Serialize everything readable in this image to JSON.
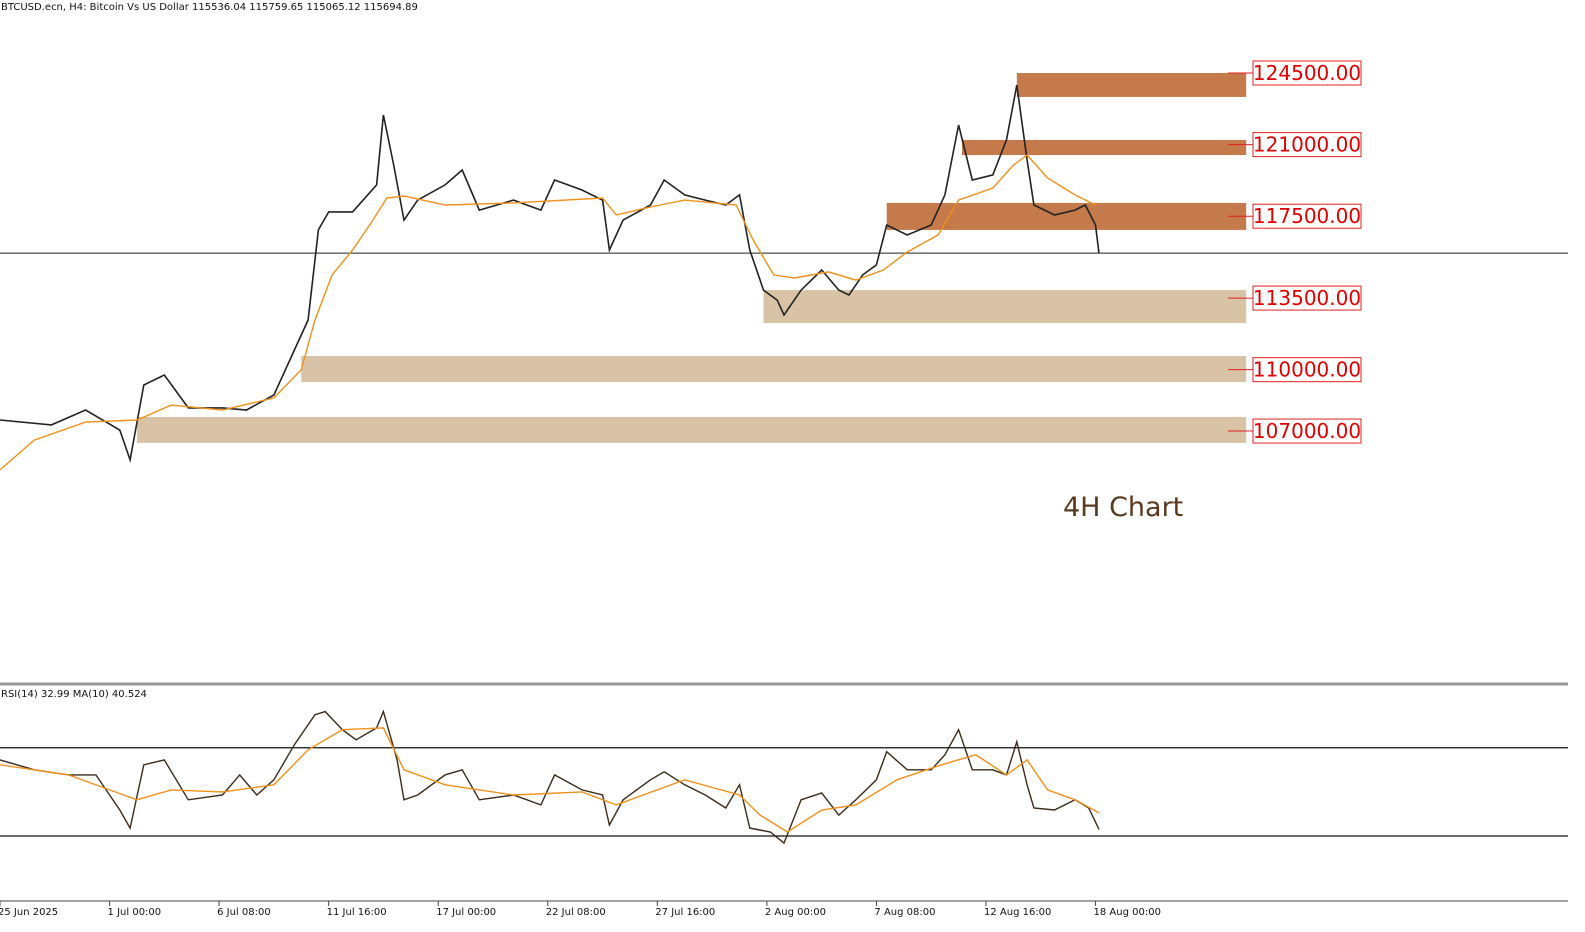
{
  "chart_data": [
    {
      "type": "line",
      "title": "BTCUSD.ecn, H4:  Bitcoin Vs US Dollar  115536.04 115759.65 115065.12 115694.89",
      "annotation": "4H Chart",
      "xlim": [
        0,
        458
      ],
      "xticks": [
        {
          "value": 0,
          "label": "25 Jun 2025"
        },
        {
          "value": 32,
          "label": "1 Jul 00:00"
        },
        {
          "value": 64,
          "label": "6 Jul 08:00"
        },
        {
          "value": 96,
          "label": "11 Jul 16:00"
        },
        {
          "value": 128,
          "label": "17 Jul 00:00"
        },
        {
          "value": 160,
          "label": "22 Jul 08:00"
        },
        {
          "value": 192,
          "label": "27 Jul 16:00"
        },
        {
          "value": 224,
          "label": "2 Aug 00:00"
        },
        {
          "value": 256,
          "label": "7 Aug 08:00"
        },
        {
          "value": 288,
          "label": "12 Aug 16:00"
        },
        {
          "value": 320,
          "label": "18 Aug 00:00"
        }
      ],
      "ylim": [
        94686,
        128068
      ],
      "last_price": 115694.89,
      "series": [
        {
          "color": "#222222",
          "x": [
            0,
            15,
            25,
            35,
            38,
            42,
            48,
            55,
            65,
            72,
            80,
            86,
            90,
            93,
            96,
            103,
            110,
            112,
            115,
            118,
            122,
            130,
            135,
            140,
            150,
            158,
            162,
            170,
            176,
            178,
            182,
            190,
            194,
            200,
            206,
            212,
            216,
            219,
            223,
            227,
            229,
            234,
            240,
            245,
            248,
            252,
            256,
            259,
            265,
            272,
            276,
            280,
            284,
            290,
            294,
            297,
            300,
            302,
            308,
            314,
            317,
            320,
            321
          ],
          "values": [
            107540,
            107300,
            108030,
            107050,
            105590,
            109250,
            109740,
            108130,
            108130,
            108030,
            108760,
            110960,
            112430,
            116830,
            117710,
            117710,
            119030,
            122450,
            120000,
            117310,
            118290,
            119030,
            119760,
            117800,
            118290,
            117800,
            119270,
            118780,
            118290,
            115850,
            117310,
            118050,
            119270,
            118540,
            118290,
            118050,
            118540,
            115850,
            113890,
            113400,
            112670,
            113890,
            114870,
            113890,
            113650,
            114630,
            115120,
            117070,
            116580,
            117070,
            118540,
            121960,
            119270,
            119520,
            121230,
            123910,
            120250,
            118050,
            117560,
            117800,
            118050,
            117070,
            115690
          ]
        },
        {
          "color": "#f0901a",
          "x": [
            0,
            10,
            25,
            40,
            50,
            65,
            80,
            88,
            92,
            97,
            103,
            108,
            113,
            118,
            130,
            150,
            176,
            180,
            190,
            200,
            215,
            220,
            226,
            232,
            242,
            250,
            258,
            265,
            274,
            280,
            290,
            296,
            300,
            306,
            314,
            320
          ],
          "values": [
            105100,
            106560,
            107440,
            107540,
            108270,
            108030,
            108620,
            110000,
            112430,
            114630,
            115850,
            117070,
            118390,
            118490,
            118050,
            118150,
            118390,
            117560,
            117950,
            118290,
            118050,
            116340,
            114630,
            114480,
            114780,
            114380,
            114870,
            115750,
            116580,
            118290,
            118880,
            120000,
            120490,
            119370,
            118540,
            118050
          ]
        }
      ],
      "zones": [
        {
          "from": 123330,
          "to": 124500,
          "x_start": 297,
          "x_end": 364,
          "color": "#c47a4a"
        },
        {
          "from": 120490,
          "to": 121230,
          "x_start": 281,
          "x_end": 364,
          "color": "#c47a4a"
        },
        {
          "from": 116830,
          "to": 118150,
          "x_start": 259,
          "x_end": 364,
          "color": "#c47a4a"
        },
        {
          "from": 112280,
          "to": 113890,
          "x_start": 223,
          "x_end": 364,
          "color": "#d9c3a7"
        },
        {
          "from": 109400,
          "to": 110670,
          "x_start": 88,
          "x_end": 364,
          "color": "#d9c3a7"
        },
        {
          "from": 106420,
          "to": 107690,
          "x_start": 40,
          "x_end": 364,
          "color": "#d9c3a7"
        }
      ],
      "levels": [
        {
          "value": 124500,
          "label": "124500.00"
        },
        {
          "value": 121000,
          "label": "121000.00"
        },
        {
          "value": 117500,
          "label": "117500.00"
        },
        {
          "value": 113500,
          "label": "113500.00"
        },
        {
          "value": 110000,
          "label": "110000.00"
        },
        {
          "value": 107000,
          "label": "107000.00"
        }
      ]
    },
    {
      "type": "line",
      "title": "RSI(14) 32.99 MA(10) 40.524",
      "xlim": [
        0,
        458
      ],
      "ylim": [
        1,
        98
      ],
      "levels": [
        30,
        70
      ],
      "series": [
        {
          "color": "#3a2a1a",
          "x": [
            0,
            10,
            20,
            28,
            35,
            38,
            42,
            48,
            55,
            65,
            70,
            75,
            80,
            86,
            92,
            95,
            100,
            104,
            110,
            112,
            116,
            118,
            122,
            130,
            135,
            140,
            150,
            158,
            162,
            170,
            176,
            178,
            182,
            190,
            194,
            200,
            206,
            212,
            216,
            219,
            225,
            229,
            234,
            240,
            245,
            250,
            256,
            259,
            265,
            272,
            276,
            280,
            284,
            290,
            294,
            297,
            300,
            302,
            308,
            314,
            318,
            321
          ],
          "values": [
            64.5,
            60,
            57.7,
            57.7,
            41.8,
            33.6,
            62.3,
            64.5,
            46.4,
            48.6,
            57.7,
            48.6,
            55.5,
            71.4,
            85,
            86.4,
            78.2,
            73.6,
            79,
            86.4,
            64.5,
            46.4,
            48.6,
            57.7,
            60,
            46.4,
            48.6,
            44.1,
            57.7,
            50.9,
            48.6,
            35,
            46.4,
            55.5,
            59.1,
            53.2,
            48.6,
            42.7,
            53.2,
            33.6,
            31.8,
            26.8,
            46.4,
            49.5,
            39.5,
            46.4,
            55.5,
            68.2,
            60,
            60,
            66.8,
            78.2,
            60,
            60,
            57.7,
            72.7,
            53.2,
            42.7,
            41.8,
            46.4,
            42.7,
            33
          ]
        },
        {
          "color": "#f0901a",
          "x": [
            0,
            20,
            40,
            50,
            65,
            80,
            90,
            100,
            112,
            118,
            130,
            150,
            170,
            180,
            200,
            216,
            222,
            230,
            240,
            250,
            262,
            275,
            285,
            294,
            300,
            306,
            314,
            321
          ],
          "values": [
            62.3,
            57.7,
            46.4,
            50.9,
            50,
            53.2,
            69.1,
            78.2,
            79,
            60,
            53.2,
            48.6,
            50,
            44.1,
            55.5,
            48.6,
            39.5,
            31.8,
            41.8,
            44.1,
            55.5,
            62.3,
            66.8,
            57.7,
            64.5,
            50.9,
            46.4,
            40.5
          ]
        }
      ]
    }
  ]
}
